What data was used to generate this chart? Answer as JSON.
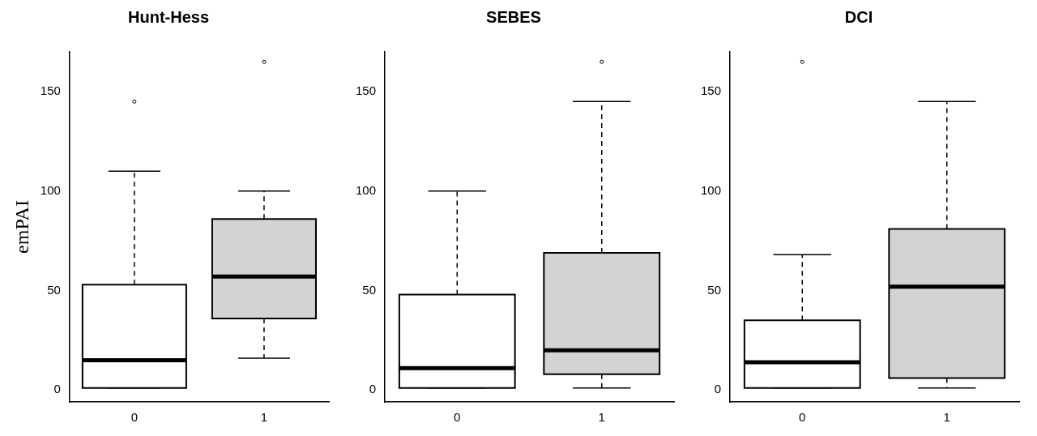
{
  "chart_data": [
    {
      "type": "box",
      "title": "Hunt-Hess",
      "ylabel": "emPAI",
      "categories": [
        "0",
        "1"
      ],
      "colors": [
        "#ffffff",
        "#d3d3d3"
      ],
      "ylim": [
        -6,
        170
      ],
      "yticks": [
        0,
        50,
        100,
        150
      ],
      "boxes": [
        {
          "low": 1,
          "q1": 1,
          "median": 15,
          "q3": 53,
          "high": 110,
          "outliers": [
            145
          ]
        },
        {
          "low": 16,
          "q1": 36,
          "median": 57,
          "q3": 86,
          "high": 100,
          "outliers": [
            165
          ]
        }
      ]
    },
    {
      "type": "box",
      "title": "SEBES",
      "categories": [
        "0",
        "1"
      ],
      "colors": [
        "#ffffff",
        "#d3d3d3"
      ],
      "ylim": [
        -6,
        170
      ],
      "yticks": [
        0,
        50,
        100,
        150
      ],
      "boxes": [
        {
          "low": 1,
          "q1": 1,
          "median": 11,
          "q3": 48,
          "high": 100
        },
        {
          "low": 1,
          "q1": 8,
          "median": 20,
          "q3": 69,
          "high": 145,
          "outliers": [
            165
          ]
        }
      ]
    },
    {
      "type": "box",
      "title": "DCI",
      "categories": [
        "0",
        "1"
      ],
      "colors": [
        "#ffffff",
        "#d3d3d3"
      ],
      "ylim": [
        -6,
        170
      ],
      "yticks": [
        0,
        50,
        100,
        150
      ],
      "boxes": [
        {
          "low": 1,
          "q1": 1,
          "median": 14,
          "q3": 35,
          "high": 68,
          "outliers": [
            165
          ]
        },
        {
          "low": 1,
          "q1": 6,
          "median": 52,
          "q3": 81,
          "high": 145
        }
      ]
    }
  ]
}
